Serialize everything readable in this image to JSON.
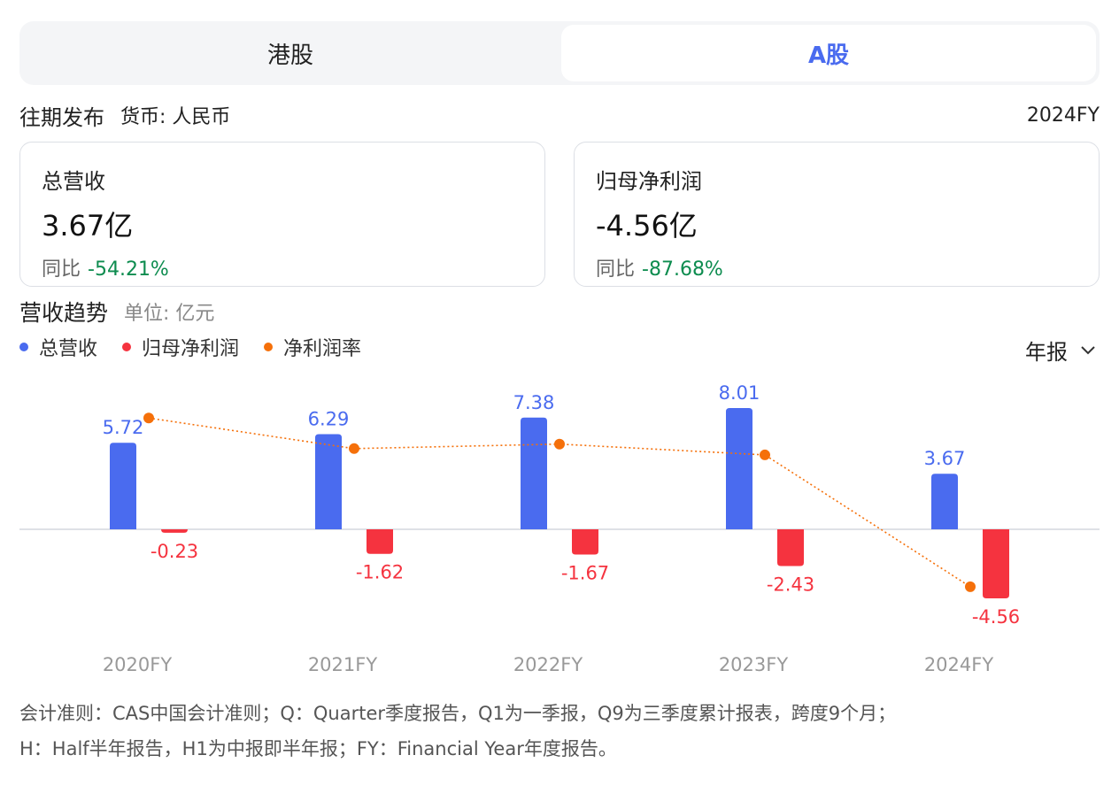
{
  "tabs": [
    {
      "label": "港股",
      "active": false
    },
    {
      "label": "A股",
      "active": true
    }
  ],
  "period": {
    "title": "往期发布",
    "currency": "货币: 人民币",
    "selected": "2024FY"
  },
  "cards": {
    "revenue": {
      "label": "总营收",
      "value": "3.67亿",
      "yoy_label": "同比",
      "yoy_value": "-54.21%"
    },
    "net_profit": {
      "label": "归母净利润",
      "value": "-4.56亿",
      "yoy_label": "同比",
      "yoy_value": "-87.68%"
    }
  },
  "trend": {
    "title": "营收趋势",
    "unit": "单位: 亿元",
    "period_select": "年报"
  },
  "colors": {
    "revenue": "#4a6bef",
    "net_profit": "#f5333f",
    "margin": "#f5700a",
    "accent": "#4a6bef",
    "positive_change": "#0d8c4f"
  },
  "icons": {
    "chevron": "chevron-down-icon"
  },
  "chart_data": {
    "type": "bar",
    "categories": [
      "2020FY",
      "2021FY",
      "2022FY",
      "2023FY",
      "2024FY"
    ],
    "series": [
      {
        "name": "总营收",
        "type": "bar",
        "values": [
          5.72,
          6.29,
          7.38,
          8.01,
          3.67
        ]
      },
      {
        "name": "归母净利润",
        "type": "bar",
        "values": [
          -0.23,
          -1.62,
          -1.67,
          -2.43,
          -4.56
        ]
      },
      {
        "name": "净利润率",
        "type": "line",
        "style": "dotted",
        "values": [
          -4.0,
          -25.8,
          -22.6,
          -30.3,
          -124.3
        ]
      }
    ],
    "legend": "top-left",
    "grid": false
  },
  "footnote": {
    "line1": "会计准则：CAS中国会计准则；Q：Quarter季度报告，Q1为一季报，Q9为三季度累计报表，跨度9个月；",
    "line2": "H：Half半年报告，H1为中报即半年报；FY：Financial Year年度报告。"
  }
}
